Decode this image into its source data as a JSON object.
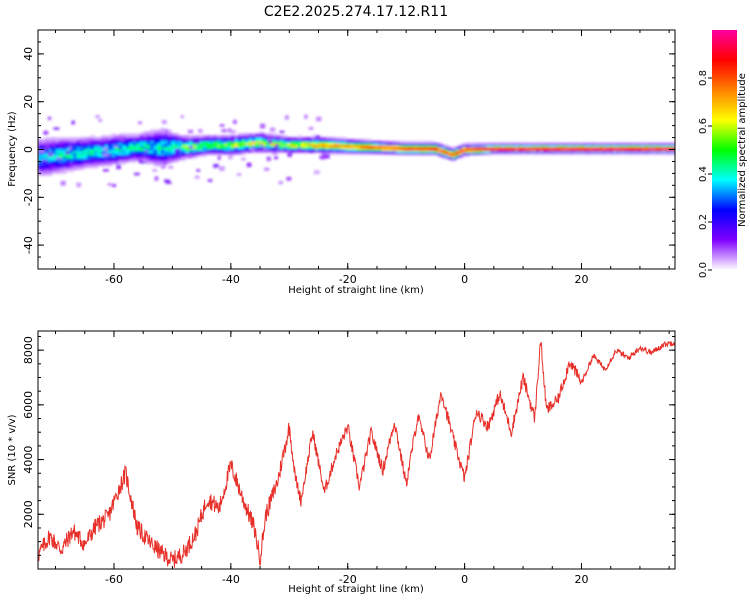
{
  "chart_data": [
    {
      "type": "heatmap",
      "title": "C2E2.2025.274.17.12.R11",
      "xlabel": "Height of straight line (km)",
      "ylabel": "Frequency (Hz)",
      "xlim": [
        -73,
        36
      ],
      "ylim": [
        -50,
        50
      ],
      "xticks": [
        -60,
        -40,
        -20,
        0,
        20
      ],
      "yticks": [
        -40,
        -20,
        0,
        20,
        40
      ],
      "xtick_labels": [
        "-60",
        "-40",
        "-20",
        "0",
        "20"
      ],
      "ytick_labels": [
        "-40",
        "-20",
        "0",
        "20",
        "40"
      ],
      "ridge": [
        {
          "x": -72,
          "f": -3,
          "spread": 5.0,
          "amp": 0.35
        },
        {
          "x": -68,
          "f": -2,
          "spread": 4.5,
          "amp": 0.4
        },
        {
          "x": -64,
          "f": -1,
          "spread": 4.0,
          "amp": 0.38
        },
        {
          "x": -60,
          "f": 0,
          "spread": 4.0,
          "amp": 0.4
        },
        {
          "x": -56,
          "f": 1,
          "spread": 3.5,
          "amp": 0.42
        },
        {
          "x": -52,
          "f": 1,
          "spread": 5.0,
          "amp": 0.38
        },
        {
          "x": -48,
          "f": 1,
          "spread": 3.0,
          "amp": 0.5
        },
        {
          "x": -44,
          "f": 2,
          "spread": 2.5,
          "amp": 0.5
        },
        {
          "x": -40,
          "f": 2,
          "spread": 2.5,
          "amp": 0.55
        },
        {
          "x": -35,
          "f": 3,
          "spread": 2.5,
          "amp": 0.55
        },
        {
          "x": -30,
          "f": 2,
          "spread": 2.0,
          "amp": 0.6
        },
        {
          "x": -25,
          "f": 2,
          "spread": 2.0,
          "amp": 0.72
        },
        {
          "x": -20,
          "f": 1.5,
          "spread": 1.8,
          "amp": 0.75
        },
        {
          "x": -15,
          "f": 1,
          "spread": 1.6,
          "amp": 0.8
        },
        {
          "x": -10,
          "f": 0.5,
          "spread": 1.5,
          "amp": 0.85
        },
        {
          "x": -5,
          "f": 0.5,
          "spread": 1.5,
          "amp": 0.9
        },
        {
          "x": -2,
          "f": -2,
          "spread": 1.5,
          "amp": 0.85
        },
        {
          "x": 0,
          "f": 0,
          "spread": 1.4,
          "amp": 0.92
        },
        {
          "x": 5,
          "f": 0.5,
          "spread": 1.2,
          "amp": 0.95
        },
        {
          "x": 10,
          "f": 0.5,
          "spread": 1.2,
          "amp": 0.95
        },
        {
          "x": 15,
          "f": 0.5,
          "spread": 1.2,
          "amp": 0.97
        },
        {
          "x": 20,
          "f": 0.5,
          "spread": 1.2,
          "amp": 0.98
        },
        {
          "x": 25,
          "f": 0.5,
          "spread": 1.2,
          "amp": 1.0
        },
        {
          "x": 30,
          "f": 0.5,
          "spread": 1.2,
          "amp": 1.0
        },
        {
          "x": 35,
          "f": 0.5,
          "spread": 1.2,
          "amp": 1.0
        }
      ],
      "colorbar": {
        "label": "Normalized spectral amplitude",
        "range": [
          0.0,
          1.0
        ],
        "ticks": [
          0.0,
          0.2,
          0.4,
          0.6,
          0.8
        ],
        "tick_labels": [
          "0.0",
          "0.2",
          "0.4",
          "0.6",
          "0.8"
        ],
        "stops": [
          "#ffffff",
          "#8000ff",
          "#0000ff",
          "#00ffff",
          "#00ff00",
          "#ffff00",
          "#ff8000",
          "#ff0000",
          "#ff00a0"
        ]
      }
    },
    {
      "type": "line",
      "xlabel": "Height of straight line (km)",
      "ylabel": "SNR (10 * v/v)",
      "xlim": [
        -73,
        36
      ],
      "ylim": [
        0,
        8700
      ],
      "xticks": [
        -60,
        -40,
        -20,
        0,
        20
      ],
      "yticks": [
        2000,
        4000,
        6000,
        8000
      ],
      "xtick_labels": [
        "-60",
        "-40",
        "-20",
        "0",
        "20"
      ],
      "ytick_labels": [
        "2000",
        "4000",
        "6000",
        "8000"
      ],
      "color": "#e8302a",
      "x": [
        -73,
        -71,
        -69,
        -67,
        -65,
        -63,
        -61,
        -59,
        -58,
        -56,
        -54,
        -52,
        -50,
        -48,
        -46,
        -44,
        -42,
        -40,
        -38,
        -36,
        -35,
        -34,
        -32,
        -30,
        -29,
        -28,
        -26,
        -24,
        -22,
        -20,
        -18,
        -16,
        -14,
        -12,
        -10,
        -8,
        -6,
        -4,
        -2,
        0,
        2,
        4,
        6,
        8,
        10,
        12,
        13,
        14,
        16,
        18,
        20,
        22,
        24,
        26,
        28,
        30,
        32,
        34,
        36
      ],
      "y": [
        500,
        1200,
        700,
        1400,
        900,
        1600,
        1900,
        3000,
        3500,
        1500,
        1000,
        600,
        300,
        600,
        1300,
        2600,
        2200,
        3800,
        2600,
        1500,
        400,
        2000,
        3200,
        5200,
        3400,
        2500,
        5000,
        2800,
        4200,
        5200,
        3000,
        5000,
        3600,
        5400,
        3100,
        5600,
        4000,
        6500,
        4800,
        3300,
        5800,
        5200,
        6400,
        5000,
        7000,
        5500,
        8400,
        5800,
        6200,
        7600,
        6800,
        7800,
        7300,
        8000,
        7700,
        8100,
        7900,
        8200,
        8300
      ]
    }
  ]
}
